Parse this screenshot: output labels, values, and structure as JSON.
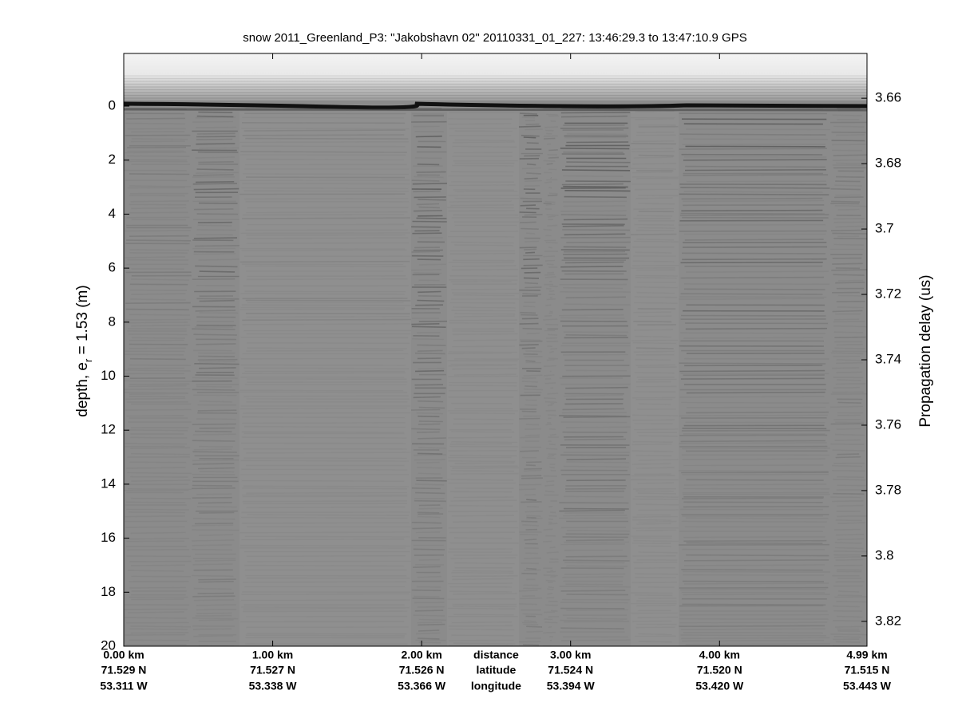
{
  "chart_data": {
    "type": "echogram",
    "title": "snow 2011_Greenland_P3: \"Jakobshavn 02\"  20110331_01_227: 13:46:29.3 to 13:47:10.9 GPS",
    "ylabel": "depth, e",
    "ylabel_subscript": "r",
    "ylabel_suffix": " = 1.53 (m)",
    "y2label": "Propagation delay (us)",
    "xlim": [
      0,
      4.99
    ],
    "xticks": [
      {
        "value": 0,
        "label": "0.00 km"
      },
      {
        "value": 1,
        "label": "1.00 km"
      },
      {
        "value": 2,
        "label": "2.00 km"
      },
      {
        "value": 3,
        "label": "3.00 km"
      },
      {
        "value": 4,
        "label": "4.00 km"
      },
      {
        "value": 4.99,
        "label": "4.99 km"
      }
    ],
    "latitudes": [
      "71.529 N",
      "71.527 N",
      "71.526 N",
      "71.524 N",
      "71.520 N",
      "71.515 N"
    ],
    "longitudes": [
      "53.311 W",
      "53.338 W",
      "53.366 W",
      "53.394 W",
      "53.420 W",
      "53.443 W"
    ],
    "row_labels": [
      "distance",
      "latitude",
      "longitude"
    ],
    "ylim": [
      -1.95,
      20
    ],
    "yticks": [
      0,
      2,
      4,
      6,
      8,
      10,
      12,
      14,
      16,
      18,
      20
    ],
    "y2lim": [
      3.6463,
      3.8276
    ],
    "y2ticks": [
      3.66,
      3.68,
      3.7,
      3.72,
      3.74,
      3.76,
      3.78,
      3.8,
      3.82
    ],
    "reversed": true
  }
}
